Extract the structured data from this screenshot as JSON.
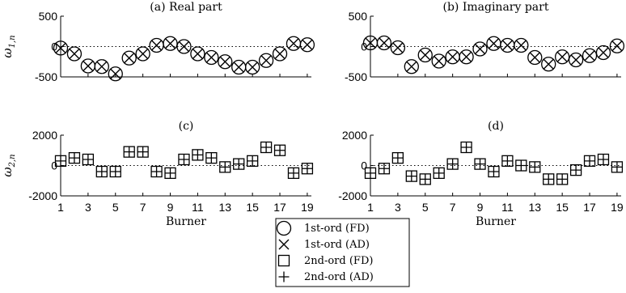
{
  "chart_data": [
    {
      "type": "scatter",
      "title": "(a) Real part",
      "xlabel": "",
      "ylabel": "ω1,n",
      "ylabel_parts": {
        "base": "ω",
        "sub": "1,n"
      },
      "xlim": [
        1,
        19.3
      ],
      "ylim": [
        -500,
        500
      ],
      "xticks": [
        1,
        3,
        5,
        7,
        9,
        11,
        13,
        15,
        17,
        19
      ],
      "yticks": [
        500,
        0,
        -500
      ],
      "ytick_labels": [
        "500",
        "0",
        "-500"
      ],
      "show_xtick_labels": false,
      "x": [
        1,
        2,
        3,
        4,
        5,
        6,
        7,
        8,
        9,
        10,
        11,
        12,
        13,
        14,
        15,
        16,
        17,
        18,
        19
      ],
      "series": [
        {
          "name": "1st-ord (FD)",
          "marker": "circle",
          "values": [
            -25,
            -120,
            -320,
            -330,
            -450,
            -190,
            -120,
            20,
            50,
            0,
            -120,
            -180,
            -250,
            -340,
            -340,
            -230,
            -120,
            50,
            30
          ]
        },
        {
          "name": "1st-ord (AD)",
          "marker": "x",
          "values": [
            -25,
            -120,
            -320,
            -330,
            -450,
            -190,
            -120,
            20,
            50,
            0,
            -120,
            -180,
            -250,
            -340,
            -340,
            -230,
            -120,
            50,
            30
          ]
        }
      ]
    },
    {
      "type": "scatter",
      "title": "(b) Imaginary part",
      "xlabel": "",
      "ylabel": "",
      "xlim": [
        1,
        19.3
      ],
      "ylim": [
        -500,
        500
      ],
      "xticks": [
        1,
        3,
        5,
        7,
        9,
        11,
        13,
        15,
        17,
        19
      ],
      "yticks": [
        500,
        0,
        -500
      ],
      "ytick_labels": [
        "500",
        "0",
        "-500"
      ],
      "show_xtick_labels": false,
      "x": [
        1,
        2,
        3,
        4,
        5,
        6,
        7,
        8,
        9,
        10,
        11,
        12,
        13,
        14,
        15,
        16,
        17,
        18,
        19
      ],
      "series": [
        {
          "name": "1st-ord (FD)",
          "marker": "circle",
          "values": [
            60,
            60,
            -20,
            -330,
            -140,
            -240,
            -170,
            -170,
            -40,
            50,
            20,
            20,
            -180,
            -290,
            -170,
            -220,
            -150,
            -100,
            10
          ]
        },
        {
          "name": "1st-ord (AD)",
          "marker": "x",
          "values": [
            60,
            60,
            -20,
            -330,
            -140,
            -240,
            -170,
            -170,
            -40,
            50,
            20,
            20,
            -180,
            -290,
            -170,
            -220,
            -150,
            -100,
            10
          ]
        }
      ]
    },
    {
      "type": "scatter",
      "title": "(c)",
      "xlabel": "Burner",
      "ylabel": "ω2,n",
      "ylabel_parts": {
        "base": "ω",
        "sub": "2,n"
      },
      "xlim": [
        1,
        19.3
      ],
      "ylim": [
        -2000,
        2000
      ],
      "xticks": [
        1,
        3,
        5,
        7,
        9,
        11,
        13,
        15,
        17,
        19
      ],
      "yticks": [
        2000,
        0,
        -2000
      ],
      "ytick_labels": [
        "2000",
        "0",
        "-2000"
      ],
      "show_xtick_labels": true,
      "x": [
        1,
        2,
        3,
        4,
        5,
        6,
        7,
        8,
        9,
        10,
        11,
        12,
        13,
        14,
        15,
        16,
        17,
        18,
        19
      ],
      "series": [
        {
          "name": "2nd-ord (FD)",
          "marker": "square",
          "values": [
            300,
            500,
            400,
            -400,
            -400,
            900,
            900,
            -400,
            -500,
            400,
            700,
            500,
            -100,
            100,
            300,
            1200,
            1000,
            -500,
            -200
          ]
        },
        {
          "name": "2nd-ord (AD)",
          "marker": "plus",
          "values": [
            300,
            500,
            400,
            -400,
            -400,
            900,
            900,
            -400,
            -500,
            400,
            700,
            500,
            -100,
            100,
            300,
            1200,
            1000,
            -500,
            -200
          ]
        }
      ]
    },
    {
      "type": "scatter",
      "title": "(d)",
      "xlabel": "Burner",
      "ylabel": "",
      "xlim": [
        1,
        19.3
      ],
      "ylim": [
        -2000,
        2000
      ],
      "xticks": [
        1,
        3,
        5,
        7,
        9,
        11,
        13,
        15,
        17,
        19
      ],
      "yticks": [
        2000,
        0,
        -2000
      ],
      "ytick_labels": [
        "2000",
        "0",
        "-2000"
      ],
      "show_xtick_labels": true,
      "x": [
        1,
        2,
        3,
        4,
        5,
        6,
        7,
        8,
        9,
        10,
        11,
        12,
        13,
        14,
        15,
        16,
        17,
        18,
        19
      ],
      "series": [
        {
          "name": "2nd-ord (FD)",
          "marker": "square",
          "values": [
            -500,
            -200,
            500,
            -700,
            -900,
            -500,
            100,
            1200,
            100,
            -400,
            300,
            0,
            -100,
            -900,
            -900,
            -300,
            300,
            400,
            -100
          ]
        },
        {
          "name": "2nd-ord (AD)",
          "marker": "plus",
          "values": [
            -500,
            -200,
            500,
            -700,
            -900,
            -500,
            100,
            1200,
            100,
            -400,
            300,
            0,
            -100,
            -900,
            -900,
            -300,
            300,
            400,
            -100
          ]
        }
      ]
    }
  ],
  "legend": {
    "placement": "bottom-center",
    "entries": [
      {
        "label": "1st-ord (FD)",
        "marker": "circle"
      },
      {
        "label": "1st-ord (AD)",
        "marker": "x"
      },
      {
        "label": "2nd-ord (FD)",
        "marker": "square"
      },
      {
        "label": "2nd-ord (AD)",
        "marker": "plus"
      }
    ]
  },
  "colors": {
    "ink": "#000000",
    "zero_line": "#000000",
    "background": "#ffffff"
  }
}
